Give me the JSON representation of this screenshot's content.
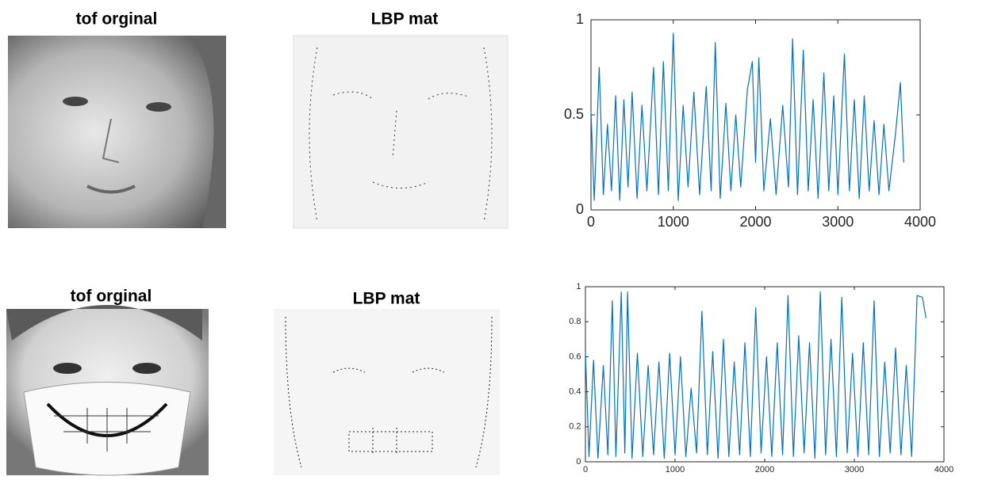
{
  "panels": [
    {
      "title": "tof orginal"
    },
    {
      "title": "LBP mat"
    },
    {
      "title": "tof orginal"
    },
    {
      "title": "LBP mat"
    }
  ],
  "chart_data": [
    {
      "type": "line",
      "color": "#0072bd",
      "x": [
        0,
        40,
        100,
        150,
        200,
        250,
        300,
        350,
        400,
        450,
        500,
        560,
        620,
        680,
        760,
        820,
        880,
        940,
        1000,
        1060,
        1120,
        1180,
        1250,
        1320,
        1400,
        1460,
        1510,
        1570,
        1640,
        1700,
        1760,
        1820,
        1900,
        1960,
        2000,
        2040,
        2100,
        2180,
        2250,
        2330,
        2400,
        2450,
        2510,
        2580,
        2640,
        2700,
        2760,
        2830,
        2890,
        2950,
        3000,
        3080,
        3140,
        3200,
        3260,
        3320,
        3380,
        3440,
        3500,
        3560,
        3620,
        3700,
        3760,
        3800
      ],
      "values": [
        0.52,
        0.05,
        0.75,
        0.08,
        0.45,
        0.1,
        0.6,
        0.05,
        0.58,
        0.12,
        0.62,
        0.06,
        0.55,
        0.1,
        0.75,
        0.08,
        0.78,
        0.1,
        0.93,
        0.05,
        0.55,
        0.12,
        0.62,
        0.08,
        0.65,
        0.1,
        0.88,
        0.06,
        0.56,
        0.1,
        0.5,
        0.12,
        0.63,
        0.78,
        0.25,
        0.8,
        0.1,
        0.48,
        0.08,
        0.55,
        0.12,
        0.9,
        0.08,
        0.84,
        0.1,
        0.58,
        0.06,
        0.72,
        0.1,
        0.6,
        0.08,
        0.82,
        0.1,
        0.58,
        0.06,
        0.6,
        0.1,
        0.47,
        0.08,
        0.45,
        0.1,
        0.4,
        0.67,
        0.25
      ],
      "xlim": [
        0,
        4000
      ],
      "ylim": [
        0,
        1
      ],
      "xticks": [
        0,
        1000,
        2000,
        3000,
        4000
      ],
      "yticks": [
        0,
        0.5,
        1
      ]
    },
    {
      "type": "line",
      "color": "#0072bd",
      "x": [
        0,
        40,
        90,
        140,
        200,
        250,
        300,
        340,
        400,
        440,
        470,
        520,
        580,
        640,
        700,
        760,
        820,
        880,
        940,
        1000,
        1060,
        1120,
        1180,
        1240,
        1300,
        1360,
        1420,
        1480,
        1540,
        1600,
        1660,
        1720,
        1780,
        1840,
        1900,
        1960,
        2020,
        2080,
        2140,
        2200,
        2260,
        2320,
        2380,
        2440,
        2500,
        2560,
        2620,
        2680,
        2740,
        2800,
        2860,
        2920,
        2980,
        3040,
        3100,
        3160,
        3220,
        3280,
        3340,
        3400,
        3460,
        3520,
        3580,
        3640,
        3700,
        3760,
        3800
      ],
      "values": [
        0.63,
        0.03,
        0.58,
        0.02,
        0.55,
        0.04,
        0.92,
        0.03,
        0.97,
        0.05,
        0.97,
        0.02,
        0.62,
        0.03,
        0.55,
        0.04,
        0.57,
        0.02,
        0.62,
        0.04,
        0.6,
        0.03,
        0.42,
        0.05,
        0.86,
        0.04,
        0.63,
        0.02,
        0.7,
        0.03,
        0.57,
        0.04,
        0.68,
        0.03,
        0.88,
        0.05,
        0.6,
        0.03,
        0.68,
        0.04,
        0.95,
        0.03,
        0.72,
        0.05,
        0.68,
        0.02,
        0.97,
        0.04,
        0.7,
        0.03,
        0.94,
        0.05,
        0.62,
        0.03,
        0.68,
        0.04,
        0.92,
        0.03,
        0.57,
        0.05,
        0.65,
        0.04,
        0.55,
        0.03,
        0.95,
        0.94,
        0.82
      ],
      "xlim": [
        0,
        4000
      ],
      "ylim": [
        0,
        1
      ],
      "xticks": [
        0,
        1000,
        2000,
        3000,
        4000
      ],
      "yticks": [
        0,
        0.2,
        0.4,
        0.6,
        0.8,
        1
      ]
    }
  ]
}
